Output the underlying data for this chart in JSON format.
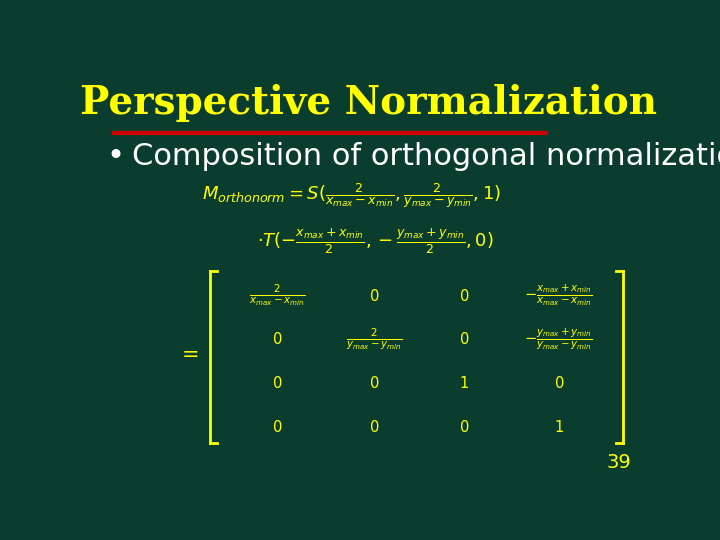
{
  "background_color": "#0a3d2e",
  "title": "Perspective Normalization",
  "title_color": "#ffff00",
  "title_fontsize": 28,
  "title_bold": true,
  "bullet_text": "Composition of orthogonal normalization",
  "bullet_color": "#ffffff",
  "bullet_fontsize": 22,
  "formula_color": "#ffff00",
  "line_color": "#cc0000",
  "page_number": "39",
  "page_color": "#ffff00"
}
